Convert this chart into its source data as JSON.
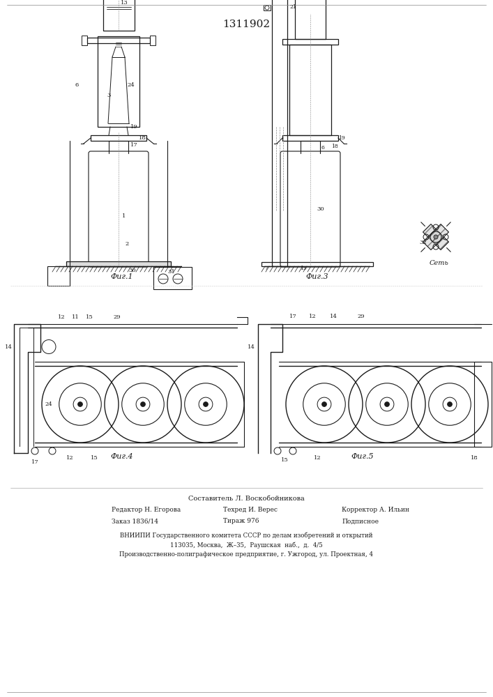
{
  "patent_number": "1311902",
  "bg": "#ffffff",
  "tc": "#1a1a1a",
  "fig_width": 7.07,
  "fig_height": 10.0,
  "dpi": 100,
  "footer": {
    "line0": "Составитель Л. Воскобойникова",
    "line1_left": "Редактор Н. Егорова",
    "line1_mid": "Техред И. Верес",
    "line1_right": "Корректор А. Ильин",
    "line2_left": "Заказ 1836/14",
    "line2_mid": "Тираж 976",
    "line2_right": "Подписное",
    "line3": "ВНИИПИ Государственного комитета СССР по делам изобретений и открытий",
    "line4": "113035, Москва,  Ж–35,  Раушская  наб.,  д.  4/5",
    "line5": "Производственно-полиграфическое предприятие, г. Ужгород, ул. Проектная, 4"
  }
}
